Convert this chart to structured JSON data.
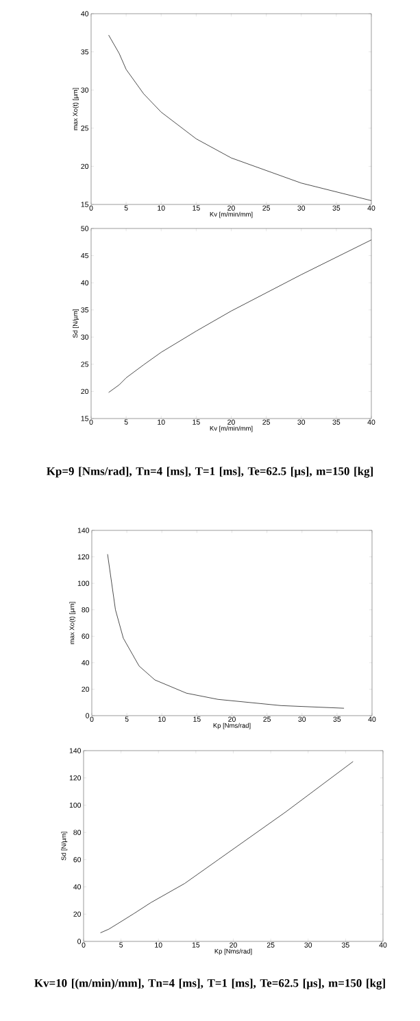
{
  "chart_data": [
    {
      "type": "line",
      "xlabel": "Kv [m/min/mm]",
      "ylabel": "max Xo(t) [µm]",
      "x": [
        2.5,
        4,
        5,
        7.5,
        10,
        15,
        20,
        30,
        40
      ],
      "series": [
        {
          "color": "#000000",
          "values": [
            37.2,
            34.8,
            32.7,
            29.5,
            27.1,
            23.6,
            21.1,
            17.8,
            15.5
          ]
        }
      ],
      "xlim": [
        0,
        40
      ],
      "ylim": [
        15,
        40
      ],
      "xticks": [
        0,
        5,
        10,
        15,
        20,
        25,
        30,
        35,
        40
      ],
      "yticks": [
        15,
        20,
        25,
        30,
        35,
        40
      ]
    },
    {
      "type": "line",
      "xlabel": "Kv [m/min/mm]",
      "ylabel": "Sd [N/µm]",
      "x": [
        2.5,
        4,
        5,
        7.5,
        10,
        15,
        20,
        30,
        40
      ],
      "series": [
        {
          "color": "#000000",
          "values": [
            19.8,
            21.2,
            22.5,
            24.9,
            27.2,
            31.1,
            34.8,
            41.5,
            47.9
          ]
        }
      ],
      "xlim": [
        0,
        40
      ],
      "ylim": [
        15,
        50
      ],
      "xticks": [
        0,
        5,
        10,
        15,
        20,
        25,
        30,
        35,
        40
      ],
      "yticks": [
        15,
        20,
        25,
        30,
        35,
        40,
        45,
        50
      ],
      "annotations": [
        "Kp=9 [Nms/rad], Tn=4 [ms], T=1 [ms], Te=62.5 [µs], m=150 [kg]"
      ]
    },
    {
      "type": "line",
      "xlabel": "Kp [Nms/rad]",
      "ylabel": "max Xo(t) [µm]",
      "x": [
        2.25,
        3.375,
        4.5,
        6.75,
        9,
        13.5,
        18,
        27,
        36
      ],
      "series": [
        {
          "color": "#000000",
          "values": [
            122,
            80,
            58.5,
            37.5,
            27,
            17,
            12.3,
            7.6,
            5.6
          ]
        }
      ],
      "xlim": [
        0,
        40
      ],
      "ylim": [
        0,
        140
      ],
      "xticks": [
        0,
        5,
        10,
        15,
        20,
        25,
        30,
        35,
        40
      ],
      "yticks": [
        0,
        20,
        40,
        60,
        80,
        100,
        120,
        140
      ]
    },
    {
      "type": "line",
      "xlabel": "Kp [Nms/rad]",
      "ylabel": "Sd [N/µm]",
      "x": [
        2.25,
        3.375,
        4.5,
        6.75,
        9,
        13.5,
        18,
        27,
        36
      ],
      "series": [
        {
          "color": "#000000",
          "values": [
            6.3,
            9.0,
            12.8,
            20.5,
            28.5,
            42.5,
            60,
            95,
            132
          ]
        }
      ],
      "xlim": [
        0,
        40
      ],
      "ylim": [
        0,
        140
      ],
      "xticks": [
        0,
        5,
        10,
        15,
        20,
        25,
        30,
        35,
        40
      ],
      "yticks": [
        0,
        20,
        40,
        60,
        80,
        100,
        120,
        140
      ],
      "annotations": [
        "Kv=10 [(m/min)/mm], Tn=4 [ms], T=1 [ms], Te=62.5 [µs], m=150 [kg]"
      ]
    }
  ]
}
